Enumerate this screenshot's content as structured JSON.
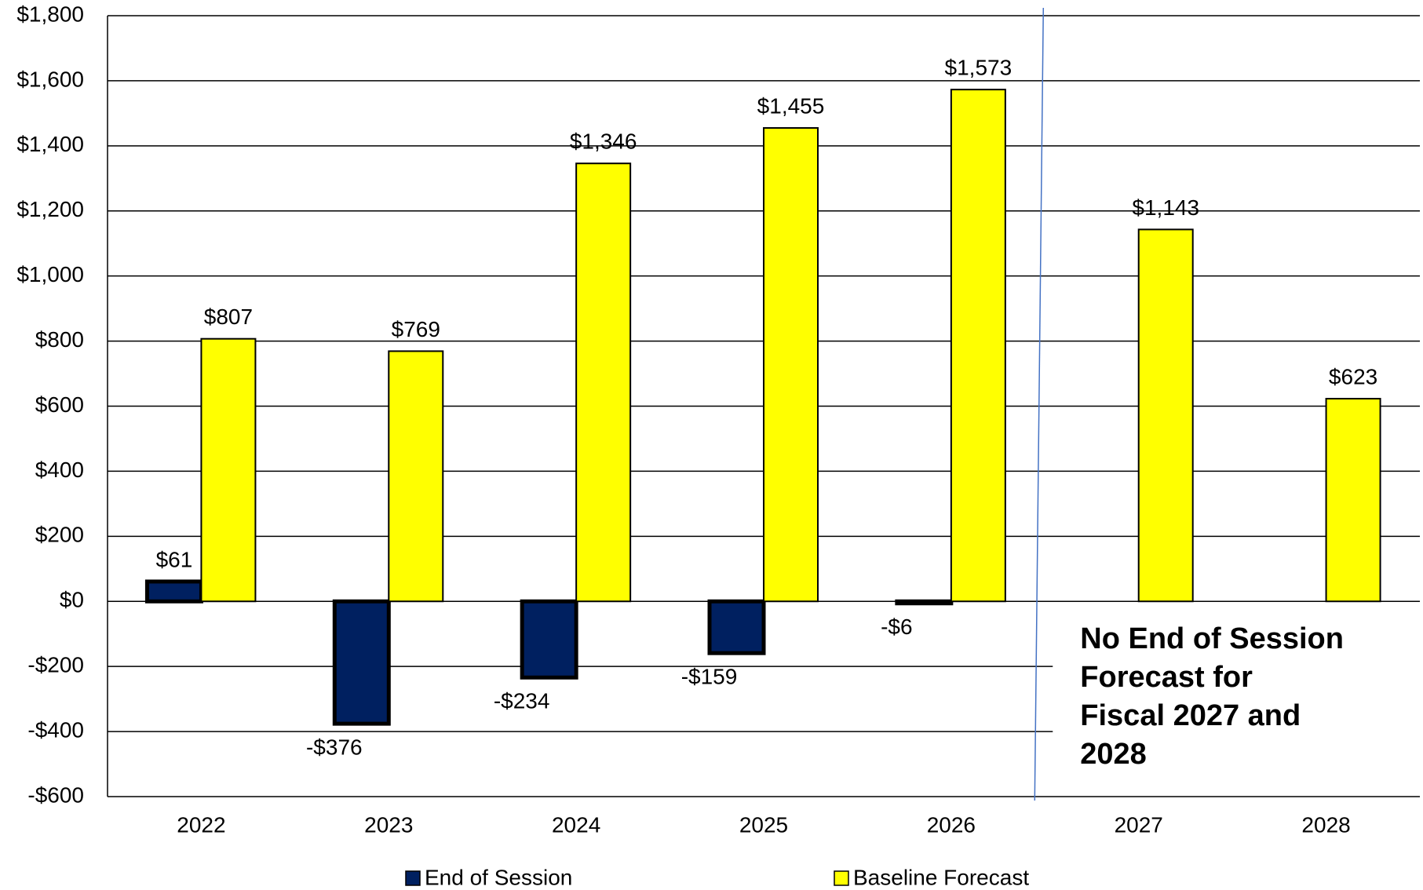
{
  "chart_data": {
    "type": "bar",
    "categories": [
      "2022",
      "2023",
      "2024",
      "2025",
      "2026",
      "2027",
      "2028"
    ],
    "series": [
      {
        "name": "End of Session",
        "color": "#002060",
        "values": [
          61,
          -376,
          -234,
          -159,
          -6,
          null,
          null
        ],
        "value_labels": [
          "$61",
          "-$376",
          "-$234",
          "-$159",
          "-$6",
          null,
          null
        ]
      },
      {
        "name": "Baseline Forecast",
        "color": "#ffff00",
        "values": [
          807,
          769,
          1346,
          1455,
          1573,
          1143,
          623
        ],
        "value_labels": [
          "$807",
          "$769",
          "$1,346",
          "$1,455",
          "$1,573",
          "$1,143",
          "$623"
        ]
      }
    ],
    "ylim": [
      -600,
      1800
    ],
    "yticks": [
      {
        "value": -600,
        "label": "-$600"
      },
      {
        "value": -400,
        "label": "-$400"
      },
      {
        "value": -200,
        "label": "-$200"
      },
      {
        "value": 0,
        "label": "$0"
      },
      {
        "value": 200,
        "label": "$200"
      },
      {
        "value": 400,
        "label": "$400"
      },
      {
        "value": 600,
        "label": "$600"
      },
      {
        "value": 800,
        "label": "$800"
      },
      {
        "value": 1000,
        "label": "$1,000"
      },
      {
        "value": 1200,
        "label": "$1,200"
      },
      {
        "value": 1400,
        "label": "$1,400"
      },
      {
        "value": 1600,
        "label": "$1,600"
      },
      {
        "value": 1800,
        "label": "$1,800"
      }
    ],
    "grid": true,
    "annotation": [
      "No End of Session",
      "Forecast for",
      "Fiscal 2027 and",
      "2028"
    ]
  }
}
